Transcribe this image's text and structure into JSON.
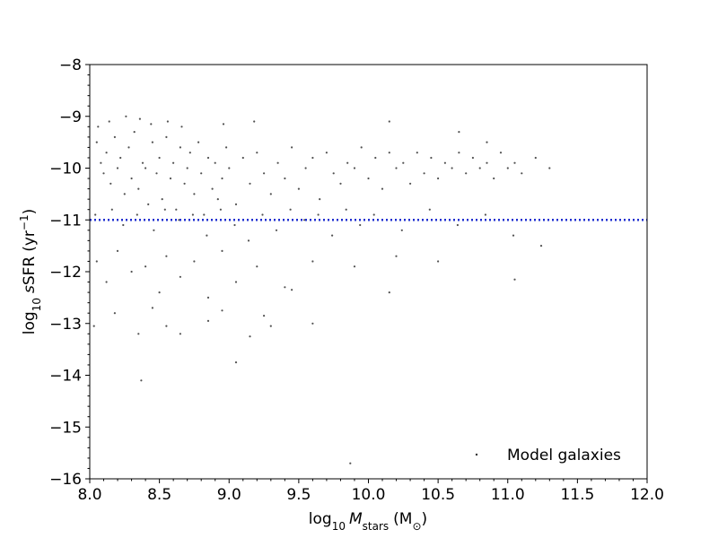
{
  "chart_data": {
    "type": "scatter",
    "title": "",
    "xlabel": "log₁₀ M_stars (M⊙)",
    "ylabel": "log₁₀ sSFR (yr⁻¹)",
    "xlabel_parts": {
      "prefix": "log",
      "prefix_sub": "10",
      "var": "M",
      "var_sub": "stars",
      "unit": "(M",
      "unit_sub": "⊙",
      "unit_close": ")"
    },
    "ylabel_parts": {
      "prefix": "log",
      "prefix_sub": "10",
      "var": "s",
      "name": "SFR",
      "unit": "(yr",
      "unit_sup": "−1",
      "unit_close": ")"
    },
    "xlim": [
      8.0,
      12.0
    ],
    "ylim": [
      -16,
      -8
    ],
    "x_ticks": [
      8.0,
      8.5,
      9.0,
      9.5,
      10.0,
      10.5,
      11.0,
      11.5,
      12.0
    ],
    "x_tick_labels": [
      "8.0",
      "8.5",
      "9.0",
      "9.5",
      "10.0",
      "10.5",
      "11.0",
      "11.5",
      "12.0"
    ],
    "y_ticks": [
      -8,
      -9,
      -10,
      -11,
      -12,
      -13,
      -14,
      -15,
      -16
    ],
    "y_tick_labels": [
      "−8",
      "−9",
      "−10",
      "−11",
      "−12",
      "−13",
      "−14",
      "−15",
      "−16"
    ],
    "grid": false,
    "legend_position": "bottom-right",
    "series": [
      {
        "name": "Model galaxies",
        "color": "#333333",
        "points": [
          [
            8.05,
            -9.5
          ],
          [
            8.08,
            -9.9
          ],
          [
            8.1,
            -10.1
          ],
          [
            8.12,
            -9.7
          ],
          [
            8.15,
            -10.3
          ],
          [
            8.18,
            -9.4
          ],
          [
            8.2,
            -10.0
          ],
          [
            8.22,
            -9.8
          ],
          [
            8.25,
            -10.5
          ],
          [
            8.28,
            -9.6
          ],
          [
            8.3,
            -10.2
          ],
          [
            8.32,
            -9.3
          ],
          [
            8.35,
            -10.4
          ],
          [
            8.38,
            -9.9
          ],
          [
            8.4,
            -10.0
          ],
          [
            8.42,
            -10.7
          ],
          [
            8.45,
            -9.5
          ],
          [
            8.48,
            -10.1
          ],
          [
            8.5,
            -9.8
          ],
          [
            8.52,
            -10.6
          ],
          [
            8.55,
            -9.4
          ],
          [
            8.58,
            -10.2
          ],
          [
            8.6,
            -9.9
          ],
          [
            8.62,
            -10.8
          ],
          [
            8.65,
            -9.6
          ],
          [
            8.68,
            -10.3
          ],
          [
            8.7,
            -10.0
          ],
          [
            8.72,
            -9.7
          ],
          [
            8.75,
            -10.5
          ],
          [
            8.78,
            -9.5
          ],
          [
            8.8,
            -10.1
          ],
          [
            8.82,
            -10.9
          ],
          [
            8.85,
            -9.8
          ],
          [
            8.88,
            -10.4
          ],
          [
            8.9,
            -9.9
          ],
          [
            8.92,
            -10.6
          ],
          [
            8.95,
            -10.2
          ],
          [
            8.98,
            -9.6
          ],
          [
            9.0,
            -10.0
          ],
          [
            9.05,
            -10.7
          ],
          [
            9.1,
            -9.8
          ],
          [
            9.15,
            -10.3
          ],
          [
            9.2,
            -9.7
          ],
          [
            9.25,
            -10.1
          ],
          [
            9.3,
            -10.5
          ],
          [
            9.35,
            -9.9
          ],
          [
            9.4,
            -10.2
          ],
          [
            9.45,
            -9.6
          ],
          [
            9.5,
            -10.4
          ],
          [
            9.55,
            -10.0
          ],
          [
            9.6,
            -9.8
          ],
          [
            9.65,
            -10.6
          ],
          [
            9.7,
            -9.7
          ],
          [
            9.75,
            -10.1
          ],
          [
            9.8,
            -10.3
          ],
          [
            9.85,
            -9.9
          ],
          [
            9.9,
            -10.0
          ],
          [
            9.95,
            -9.6
          ],
          [
            10.0,
            -10.2
          ],
          [
            10.05,
            -9.8
          ],
          [
            10.1,
            -10.4
          ],
          [
            10.15,
            -9.7
          ],
          [
            10.2,
            -10.0
          ],
          [
            10.25,
            -9.9
          ],
          [
            10.3,
            -10.3
          ],
          [
            10.35,
            -9.7
          ],
          [
            10.4,
            -10.1
          ],
          [
            10.45,
            -9.8
          ],
          [
            10.5,
            -10.2
          ],
          [
            10.55,
            -9.9
          ],
          [
            10.6,
            -10.0
          ],
          [
            10.65,
            -9.7
          ],
          [
            10.7,
            -10.1
          ],
          [
            10.75,
            -9.8
          ],
          [
            10.8,
            -10.0
          ],
          [
            10.85,
            -9.9
          ],
          [
            10.9,
            -10.2
          ],
          [
            10.95,
            -9.7
          ],
          [
            11.0,
            -10.0
          ],
          [
            11.05,
            -9.9
          ],
          [
            11.1,
            -10.1
          ],
          [
            11.2,
            -9.8
          ],
          [
            11.3,
            -10.0
          ],
          [
            8.06,
            -9.2
          ],
          [
            8.14,
            -9.1
          ],
          [
            8.26,
            -9.0
          ],
          [
            8.36,
            -9.05
          ],
          [
            8.44,
            -9.15
          ],
          [
            8.56,
            -9.1
          ],
          [
            8.66,
            -9.2
          ],
          [
            8.96,
            -9.15
          ],
          [
            9.18,
            -9.1
          ],
          [
            10.15,
            -9.1
          ],
          [
            10.65,
            -9.3
          ],
          [
            10.85,
            -9.5
          ],
          [
            8.04,
            -10.9
          ],
          [
            8.16,
            -10.8
          ],
          [
            8.24,
            -11.1
          ],
          [
            8.34,
            -10.9
          ],
          [
            8.46,
            -11.2
          ],
          [
            8.54,
            -10.8
          ],
          [
            8.64,
            -11.0
          ],
          [
            8.74,
            -10.9
          ],
          [
            8.84,
            -11.3
          ],
          [
            8.94,
            -10.8
          ],
          [
            9.04,
            -11.1
          ],
          [
            9.14,
            -11.4
          ],
          [
            9.24,
            -10.9
          ],
          [
            9.34,
            -11.2
          ],
          [
            9.44,
            -10.8
          ],
          [
            9.54,
            -11.0
          ],
          [
            9.64,
            -10.9
          ],
          [
            9.74,
            -11.3
          ],
          [
            9.84,
            -10.8
          ],
          [
            9.94,
            -11.1
          ],
          [
            10.04,
            -10.9
          ],
          [
            10.24,
            -11.2
          ],
          [
            10.44,
            -10.8
          ],
          [
            10.64,
            -11.1
          ],
          [
            10.84,
            -10.9
          ],
          [
            11.04,
            -11.3
          ],
          [
            11.24,
            -11.5
          ],
          [
            8.05,
            -11.8
          ],
          [
            8.12,
            -12.2
          ],
          [
            8.2,
            -11.6
          ],
          [
            8.3,
            -12.0
          ],
          [
            8.4,
            -11.9
          ],
          [
            8.5,
            -12.4
          ],
          [
            8.55,
            -11.7
          ],
          [
            8.65,
            -12.1
          ],
          [
            8.75,
            -11.8
          ],
          [
            8.85,
            -12.5
          ],
          [
            8.95,
            -11.6
          ],
          [
            9.05,
            -12.2
          ],
          [
            9.2,
            -11.9
          ],
          [
            9.4,
            -12.3
          ],
          [
            9.6,
            -11.8
          ],
          [
            9.9,
            -11.9
          ],
          [
            10.2,
            -11.7
          ],
          [
            10.5,
            -11.8
          ],
          [
            11.05,
            -12.15
          ],
          [
            10.15,
            -12.4
          ],
          [
            9.45,
            -12.35
          ],
          [
            8.03,
            -13.05
          ],
          [
            8.18,
            -12.8
          ],
          [
            8.35,
            -13.2
          ],
          [
            8.45,
            -12.7
          ],
          [
            8.55,
            -13.05
          ],
          [
            8.65,
            -13.2
          ],
          [
            8.85,
            -12.95
          ],
          [
            8.95,
            -12.75
          ],
          [
            9.05,
            -13.75
          ],
          [
            9.15,
            -13.25
          ],
          [
            9.25,
            -12.85
          ],
          [
            9.3,
            -13.05
          ],
          [
            9.6,
            -13.0
          ],
          [
            8.37,
            -14.1
          ],
          [
            9.87,
            -15.7
          ]
        ]
      }
    ],
    "reference_line": {
      "y": -11,
      "color": "#1f2fd0",
      "style": "dotted"
    }
  }
}
